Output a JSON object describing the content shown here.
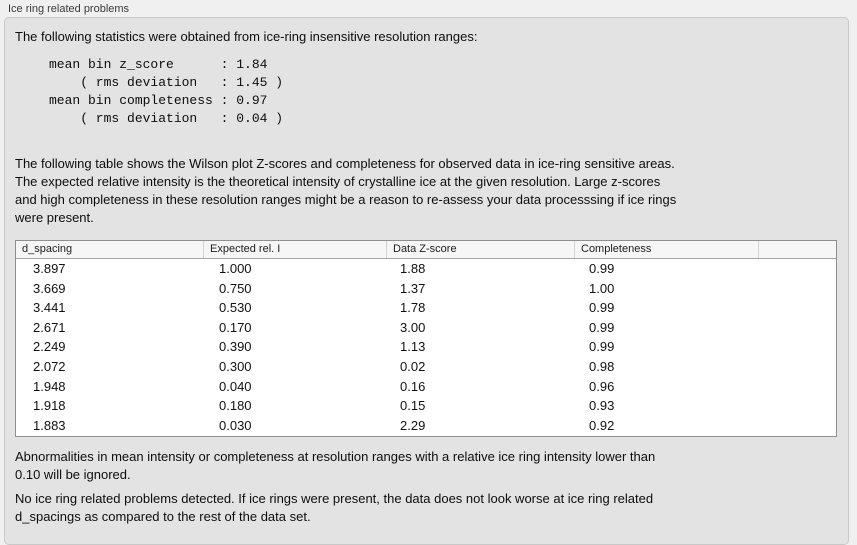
{
  "panel": {
    "title": "Ice ring related problems",
    "intro": "The following statistics were obtained from ice-ring insensitive resolution ranges:",
    "stats_block": "mean bin z_score      : 1.84\n    ( rms deviation   : 1.45 )\nmean bin completeness : 0.97\n    ( rms deviation   : 0.04 )",
    "description": "The following table shows the Wilson plot Z-scores and completeness for observed data in ice-ring sensitive areas.\nThe expected relative intensity is the theoretical intensity of crystalline ice at the given resolution. Large z-scores\nand high completeness in these resolution ranges might be a reason to re-assess your data processsing if ice rings\nwere present.",
    "note": "Abnormalities in mean intensity or completeness at resolution ranges with a relative ice ring intensity lower than\n0.10 will be ignored.",
    "conclusion": "No ice ring related problems detected. If ice rings were present, the data does not look worse at ice ring related\nd_spacings as compared to the rest of the data set."
  },
  "stats": {
    "mean_bin_z_score": "1.84",
    "z_score_rms_deviation": "1.45",
    "mean_bin_completeness": "0.97",
    "completeness_rms_deviation": "0.04"
  },
  "table": {
    "columns": [
      "d_spacing",
      "Expected rel. I",
      "Data Z-score",
      "Completeness"
    ],
    "rows": [
      [
        "3.897",
        "1.000",
        "1.88",
        "0.99"
      ],
      [
        "3.669",
        "0.750",
        "1.37",
        "1.00"
      ],
      [
        "3.441",
        "0.530",
        "1.78",
        "0.99"
      ],
      [
        "2.671",
        "0.170",
        "3.00",
        "0.99"
      ],
      [
        "2.249",
        "0.390",
        "1.13",
        "0.99"
      ],
      [
        "2.072",
        "0.300",
        "0.02",
        "0.98"
      ],
      [
        "1.948",
        "0.040",
        "0.16",
        "0.96"
      ],
      [
        "1.918",
        "0.180",
        "0.15",
        "0.93"
      ],
      [
        "1.883",
        "0.030",
        "2.29",
        "0.92"
      ]
    ]
  },
  "colors": {
    "window_background": "#f0f0f0",
    "panel_background": "#e3e3e3",
    "panel_border": "#c8c8c8",
    "table_background": "#ffffff",
    "table_border": "#8f8f8f",
    "header_background": "#f6f6f6",
    "text": "#0d0d0d"
  }
}
